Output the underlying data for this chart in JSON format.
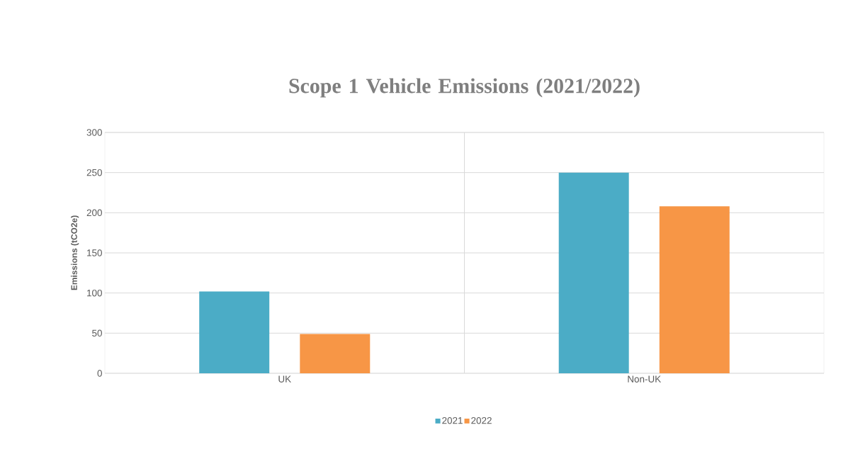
{
  "chart_data": {
    "type": "bar",
    "title": "Scope 1 Vehicle Emissions (2021/2022)",
    "ylabel": "Emissions (tCO2e)",
    "categories": [
      "UK",
      "Non-UK"
    ],
    "series": [
      {
        "name": "2021",
        "color": "#4bacc6",
        "values": [
          102,
          250
        ]
      },
      {
        "name": "2022",
        "color": "#f79646",
        "values": [
          49,
          208
        ]
      }
    ],
    "ylim": [
      0,
      300
    ],
    "yticks": [
      0,
      50,
      100,
      150,
      200,
      250,
      300
    ],
    "grid": true,
    "legend": "bottom"
  }
}
